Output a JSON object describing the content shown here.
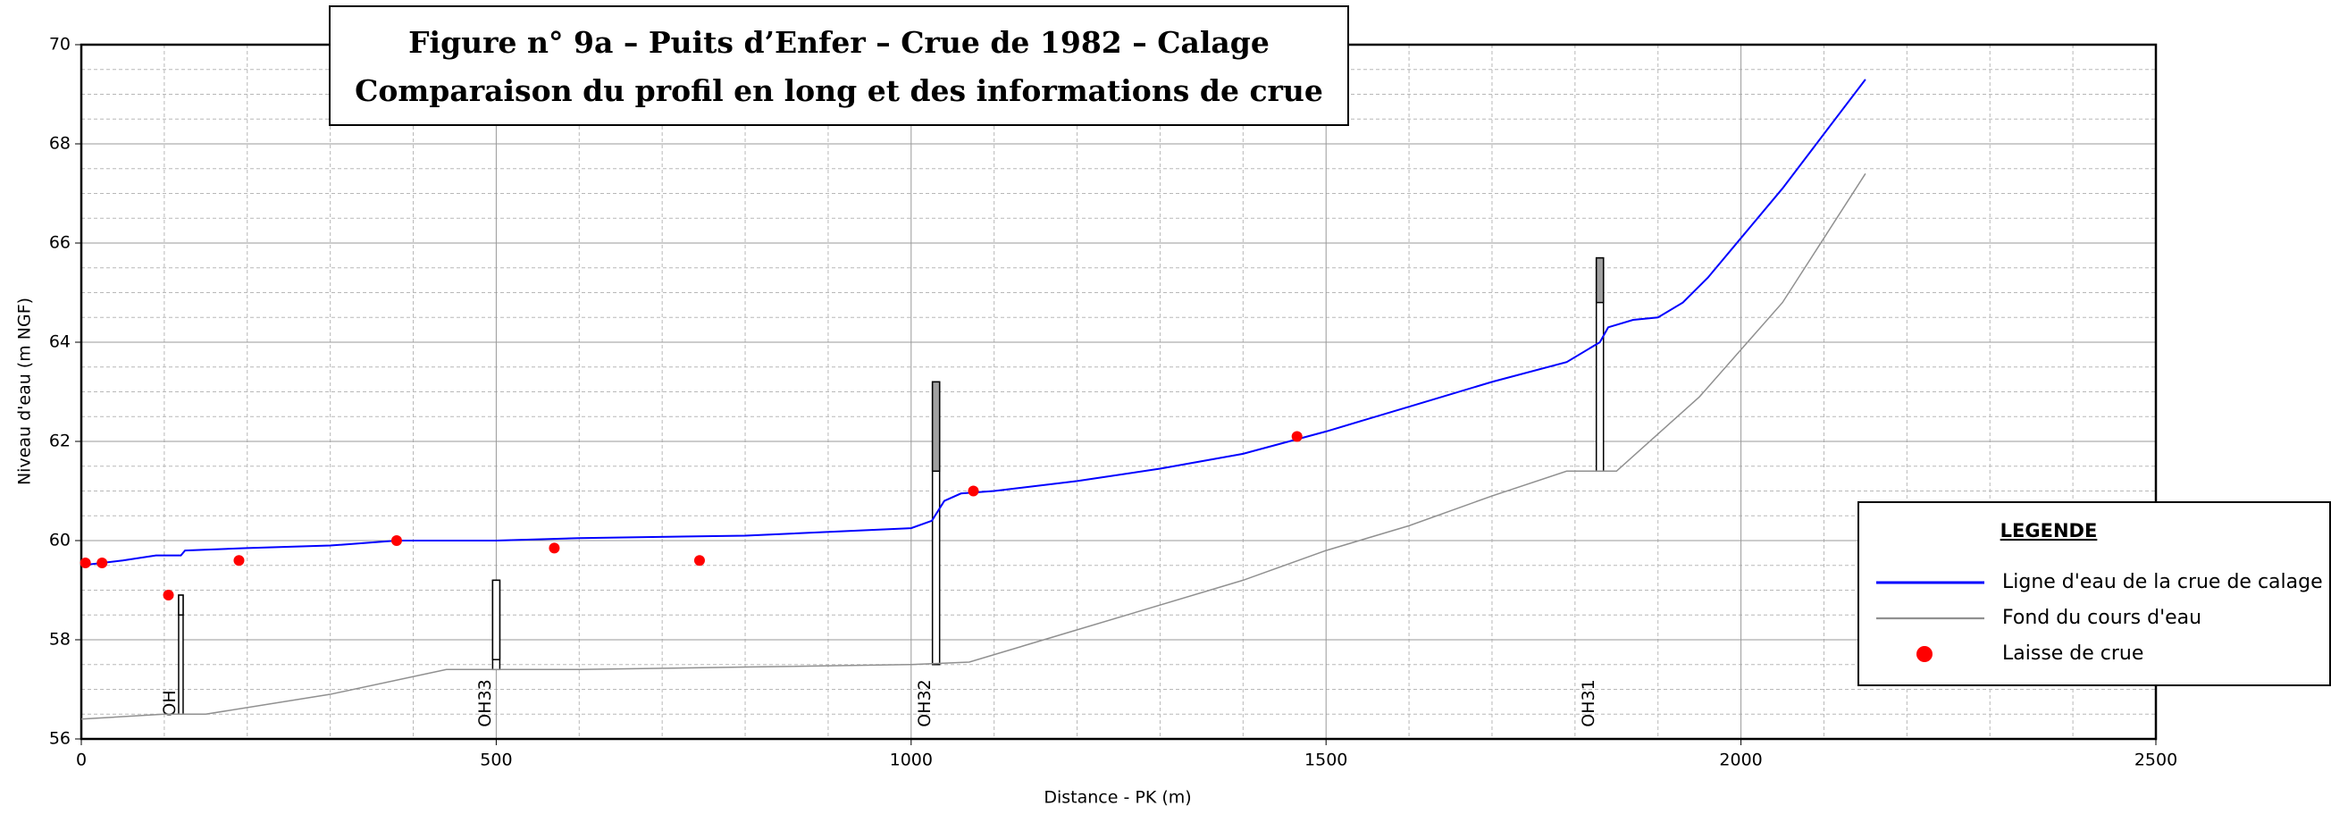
{
  "chart_data": {
    "type": "line",
    "title": "Figure n° 9a – Puits d’Enfer – Crue de 1982 – Calage",
    "subtitle": "Comparaison du profil en long et des informations de crue",
    "x_label": "Distance - PK (m)",
    "y_label": "Niveau d'eau (m NGF)",
    "xlim": [
      0,
      2500
    ],
    "ylim": [
      56,
      70
    ],
    "xticks": [
      0,
      500,
      1000,
      1500,
      2000,
      2500
    ],
    "yticks": [
      56,
      58,
      60,
      62,
      64,
      66,
      68,
      70
    ],
    "x_minor_ticks": [
      100,
      200,
      300,
      400,
      600,
      700,
      800,
      900,
      1100,
      1200,
      1300,
      1400,
      1600,
      1700,
      1800,
      1900,
      2100,
      2200,
      2300,
      2400
    ],
    "y_minor_ticks": [
      56.5,
      57,
      57.5,
      58.5,
      59,
      59.5,
      60.5,
      61,
      61.5,
      62.5,
      63,
      63.5,
      64.5,
      65,
      65.5,
      66.5,
      67,
      67.5,
      68.5,
      69,
      69.5
    ],
    "grid": true,
    "legend_title": "LEGENDE",
    "legend": "right",
    "series": [
      {
        "name": "Ligne d'eau de la crue de calage",
        "color": "#0000ff",
        "kind": "line",
        "width": 2,
        "x": [
          0,
          50,
          90,
          120,
          125,
          200,
          300,
          380,
          500,
          600,
          800,
          1000,
          1025,
          1040,
          1060,
          1100,
          1200,
          1300,
          1400,
          1500,
          1600,
          1700,
          1790,
          1830,
          1840,
          1870,
          1900,
          1930,
          1960,
          2000,
          2050,
          2100,
          2150
        ],
        "values": [
          59.5,
          59.6,
          59.7,
          59.7,
          59.8,
          59.85,
          59.9,
          60.0,
          60.0,
          60.05,
          60.1,
          60.25,
          60.4,
          60.8,
          60.95,
          61.0,
          61.2,
          61.45,
          61.75,
          62.2,
          62.7,
          63.2,
          63.6,
          64.0,
          64.3,
          64.45,
          64.5,
          64.8,
          65.3,
          66.1,
          67.1,
          68.2,
          69.3
        ]
      },
      {
        "name": "Fond du cours d'eau",
        "color": "#909090",
        "kind": "line",
        "width": 1.5,
        "x": [
          0,
          100,
          150,
          300,
          440,
          600,
          800,
          1000,
          1070,
          1200,
          1400,
          1500,
          1600,
          1700,
          1790,
          1850,
          1950,
          2050,
          2150
        ],
        "values": [
          56.4,
          56.5,
          56.5,
          56.9,
          57.4,
          57.4,
          57.45,
          57.5,
          57.55,
          58.2,
          59.2,
          59.8,
          60.3,
          60.9,
          61.4,
          61.4,
          62.9,
          64.8,
          67.4
        ]
      },
      {
        "name": "Laisse de crue",
        "color": "#ff0000",
        "kind": "points",
        "x": [
          5,
          25,
          105,
          190,
          380,
          570,
          745,
          1075,
          1465
        ],
        "values": [
          59.55,
          59.55,
          58.9,
          59.6,
          60.0,
          59.85,
          59.6,
          61.0,
          62.1
        ]
      }
    ],
    "structures": [
      {
        "label": "OH",
        "x": 120,
        "bottom": 56.5,
        "top": 58.9,
        "deck": 58.5,
        "deck_color": "#ffffff"
      },
      {
        "label": "OH33",
        "x": 500,
        "bottom": 57.4,
        "top": 59.2,
        "deck": 57.6,
        "deck_color": "#ffffff"
      },
      {
        "label": "OH32",
        "x": 1030,
        "bottom": 57.5,
        "top": 63.2,
        "deck": 61.4,
        "deck_color": "#a0a0a0"
      },
      {
        "label": "OH31",
        "x": 1830,
        "bottom": 61.4,
        "top": 65.7,
        "deck": 64.8,
        "deck_color": "#a0a0a0"
      }
    ]
  }
}
